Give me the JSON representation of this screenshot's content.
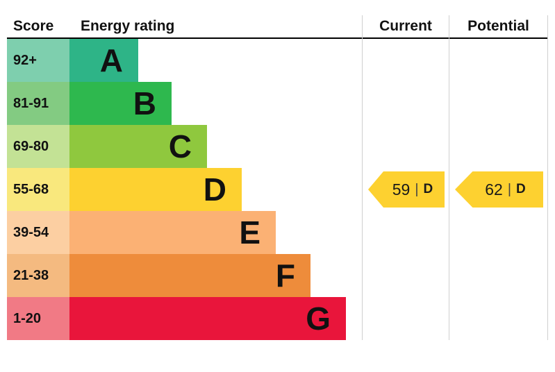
{
  "header": {
    "score": "Score",
    "energy_rating": "Energy rating",
    "current": "Current",
    "potential": "Potential"
  },
  "rows": [
    {
      "score": "92+",
      "letter": "A",
      "bar_color": "#2eb487",
      "score_bg": "#7ecfae",
      "bar_width_pct": 23.5
    },
    {
      "score": "81-91",
      "letter": "B",
      "bar_color": "#2eb84e",
      "score_bg": "#83cb82",
      "bar_width_pct": 35
    },
    {
      "score": "69-80",
      "letter": "C",
      "bar_color": "#8fc83e",
      "score_bg": "#c3e295",
      "bar_width_pct": 47
    },
    {
      "score": "55-68",
      "letter": "D",
      "bar_color": "#fdd130",
      "score_bg": "#f9e87d",
      "bar_width_pct": 59
    },
    {
      "score": "39-54",
      "letter": "E",
      "bar_color": "#fbb174",
      "score_bg": "#fccfa2",
      "bar_width_pct": 70.5
    },
    {
      "score": "21-38",
      "letter": "F",
      "bar_color": "#ee8c3b",
      "score_bg": "#f4ba80",
      "bar_width_pct": 82.5
    },
    {
      "score": "1-20",
      "letter": "G",
      "bar_color": "#e9153b",
      "score_bg": "#f17a85",
      "bar_width_pct": 94.5
    }
  ],
  "current": {
    "value": "59",
    "separator": "|",
    "rating": "D",
    "color": "#fdd130"
  },
  "potential": {
    "value": "62",
    "separator": "|",
    "rating": "D",
    "color": "#fdd130"
  },
  "chart_data": {
    "type": "bar",
    "title": "Energy rating",
    "categories": [
      "A",
      "B",
      "C",
      "D",
      "E",
      "F",
      "G"
    ],
    "score_ranges": [
      "92+",
      "81-91",
      "69-80",
      "55-68",
      "39-54",
      "21-38",
      "1-20"
    ],
    "bar_colors": [
      "#2eb487",
      "#2eb84e",
      "#8fc83e",
      "#fdd130",
      "#fbb174",
      "#ee8c3b",
      "#e9153b"
    ],
    "bar_width_pct": [
      23.5,
      35,
      47,
      59,
      70.5,
      82.5,
      94.5
    ],
    "current": {
      "value": 59,
      "rating": "D"
    },
    "potential": {
      "value": 62,
      "rating": "D"
    },
    "legend_position": "none",
    "grid": false
  }
}
